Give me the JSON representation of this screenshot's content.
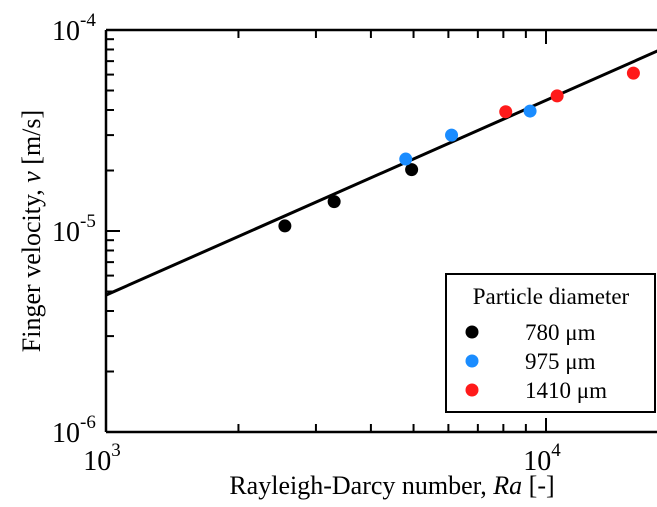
{
  "chart_data": {
    "type": "scatter",
    "xscale": "log",
    "yscale": "log",
    "xlim": [
      1000,
      18000
    ],
    "ylim": [
      1e-06,
      0.0001
    ],
    "xlabel": "Rayleigh-Darcy number, ",
    "xlabel_italic": "Ra",
    "xlabel_suffix": " [-]",
    "ylabel": "Finger velocity, ",
    "ylabel_italic": "v",
    "ylabel_suffix": " [m/s]",
    "xticks": [
      {
        "value": 1000,
        "base": "10",
        "exp": "3"
      },
      {
        "value": 10000,
        "base": "10",
        "exp": "4"
      }
    ],
    "yticks": [
      {
        "value": 1e-06,
        "base": "10",
        "exp": "-6"
      },
      {
        "value": 1e-05,
        "base": "10",
        "exp": "-5"
      },
      {
        "value": 0.0001,
        "base": "10",
        "exp": "-4"
      }
    ],
    "legend": {
      "title": "Particle diameter",
      "placement": "bottom-right"
    },
    "series": [
      {
        "name": "780 μm",
        "color": "#000000",
        "points": [
          [
            2550,
            1.06e-05
          ],
          [
            3300,
            1.4e-05
          ],
          [
            4950,
            2.02e-05
          ]
        ]
      },
      {
        "name": "975 μm",
        "color": "#1a8cff",
        "points": [
          [
            4800,
            2.28e-05
          ],
          [
            6100,
            3e-05
          ],
          [
            9200,
            3.95e-05
          ]
        ]
      },
      {
        "name": "1410 μm",
        "color": "#ff1a1a",
        "points": [
          [
            8100,
            3.92e-05
          ],
          [
            10600,
            4.7e-05
          ],
          [
            15800,
            6.1e-05
          ]
        ]
      }
    ],
    "fit_line": {
      "x": [
        1000,
        18000
      ],
      "y": [
        4.8e-06,
        7.9e-05
      ],
      "color": "#000000"
    }
  }
}
